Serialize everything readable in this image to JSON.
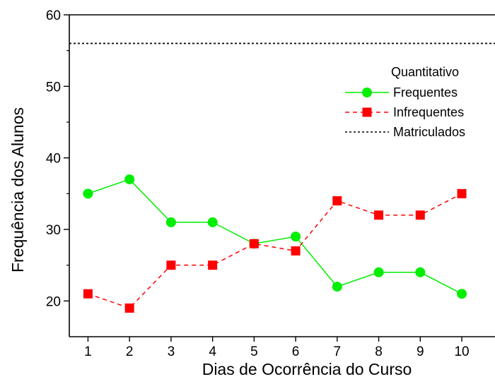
{
  "chart_data": {
    "type": "line",
    "title": "",
    "xlabel": "Dias de Ocorrência do Curso",
    "ylabel": "Frequência dos Alunos",
    "categories": [
      1,
      2,
      3,
      4,
      5,
      6,
      7,
      8,
      9,
      10
    ],
    "xlim": [
      0.55,
      10.8
    ],
    "ylim": [
      15,
      60
    ],
    "yticks": [
      20,
      30,
      40,
      50,
      60
    ],
    "grid": false,
    "legend": {
      "title": "Quantitativo",
      "position": "top-right"
    },
    "series": [
      {
        "name": "Frequentes",
        "values": [
          35,
          37,
          31,
          31,
          28,
          29,
          22,
          24,
          24,
          21
        ],
        "color": "#00ee00",
        "marker": "circle",
        "line_style": "solid"
      },
      {
        "name": "Infrequentes",
        "values": [
          21,
          19,
          25,
          25,
          28,
          27,
          34,
          32,
          32,
          35
        ],
        "color": "#ff0000",
        "marker": "square",
        "line_style": "dashed"
      },
      {
        "name": "Matriculados",
        "values": [
          56,
          56,
          56,
          56,
          56,
          56,
          56,
          56,
          56,
          56
        ],
        "color": "#000000",
        "marker": "none",
        "line_style": "dotted"
      }
    ]
  }
}
